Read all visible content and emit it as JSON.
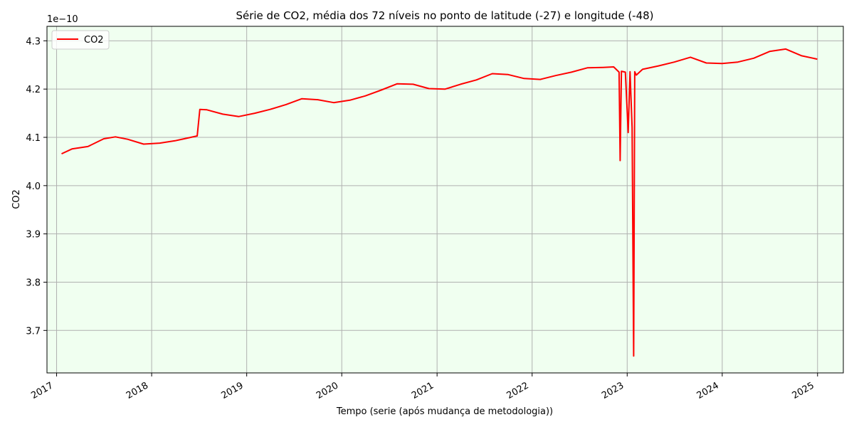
{
  "chart_data": {
    "type": "line",
    "title": "Série de CO2, média dos 72 níveis no ponto de latitude (-27) e longitude (-48)",
    "xlabel": "Tempo (serie (após mudança de metodologia))",
    "ylabel": "CO2",
    "y_offset_label": "1e−10",
    "y_scale": 1e-10,
    "xlim": [
      "2016-11-25",
      "2025-04-10"
    ],
    "ylim": [
      3.612,
      4.33
    ],
    "x_ticks": [
      "2017",
      "2018",
      "2019",
      "2020",
      "2021",
      "2022",
      "2023",
      "2024",
      "2025"
    ],
    "y_ticks": [
      3.7,
      3.8,
      3.9,
      4.0,
      4.1,
      4.2,
      4.3
    ],
    "y_tick_labels": [
      "3.7",
      "3.8",
      "3.9",
      "4.0",
      "4.1",
      "4.2",
      "4.3"
    ],
    "grid": true,
    "legend": "upper-left",
    "background_color": "#f0fff0",
    "series": [
      {
        "name": "CO2",
        "color": "#ff0000",
        "x": [
          "2017-01-20",
          "2017-03-01",
          "2017-05-01",
          "2017-07-01",
          "2017-08-15",
          "2017-10-01",
          "2017-12-01",
          "2018-02-01",
          "2018-04-01",
          "2018-06-25",
          "2018-07-05",
          "2018-08-01",
          "2018-10-01",
          "2018-12-01",
          "2019-02-01",
          "2019-04-01",
          "2019-06-01",
          "2019-08-01",
          "2019-10-01",
          "2019-12-01",
          "2020-02-01",
          "2020-04-01",
          "2020-06-01",
          "2020-08-01",
          "2020-10-01",
          "2020-12-01",
          "2021-02-01",
          "2021-04-01",
          "2021-06-01",
          "2021-08-01",
          "2021-10-01",
          "2021-12-01",
          "2022-02-01",
          "2022-04-01",
          "2022-06-01",
          "2022-08-01",
          "2022-10-01",
          "2022-11-10",
          "2022-12-01",
          "2022-12-05",
          "2022-12-10",
          "2022-12-25",
          "2023-01-05",
          "2023-01-12",
          "2023-01-20",
          "2023-01-26",
          "2023-01-30",
          "2023-02-05",
          "2023-03-01",
          "2023-05-01",
          "2023-07-01",
          "2023-09-01",
          "2023-11-01",
          "2024-01-01",
          "2024-03-01",
          "2024-05-01",
          "2024-07-01",
          "2024-09-01",
          "2024-11-01",
          "2024-12-31"
        ],
        "values": [
          4.066,
          4.076,
          4.081,
          4.097,
          4.101,
          4.096,
          4.086,
          4.088,
          4.093,
          4.103,
          4.158,
          4.157,
          4.148,
          4.143,
          4.15,
          4.158,
          4.168,
          4.18,
          4.178,
          4.172,
          4.177,
          4.186,
          4.198,
          4.211,
          4.21,
          4.201,
          4.2,
          4.21,
          4.219,
          4.232,
          4.23,
          4.222,
          4.22,
          4.228,
          4.235,
          4.244,
          4.245,
          4.246,
          4.235,
          4.052,
          4.237,
          4.235,
          4.11,
          4.236,
          4.12,
          3.647,
          4.236,
          4.229,
          4.241,
          4.248,
          4.256,
          4.266,
          4.254,
          4.253,
          4.256,
          4.264,
          4.278,
          4.283,
          4.269,
          4.262
        ]
      }
    ]
  }
}
